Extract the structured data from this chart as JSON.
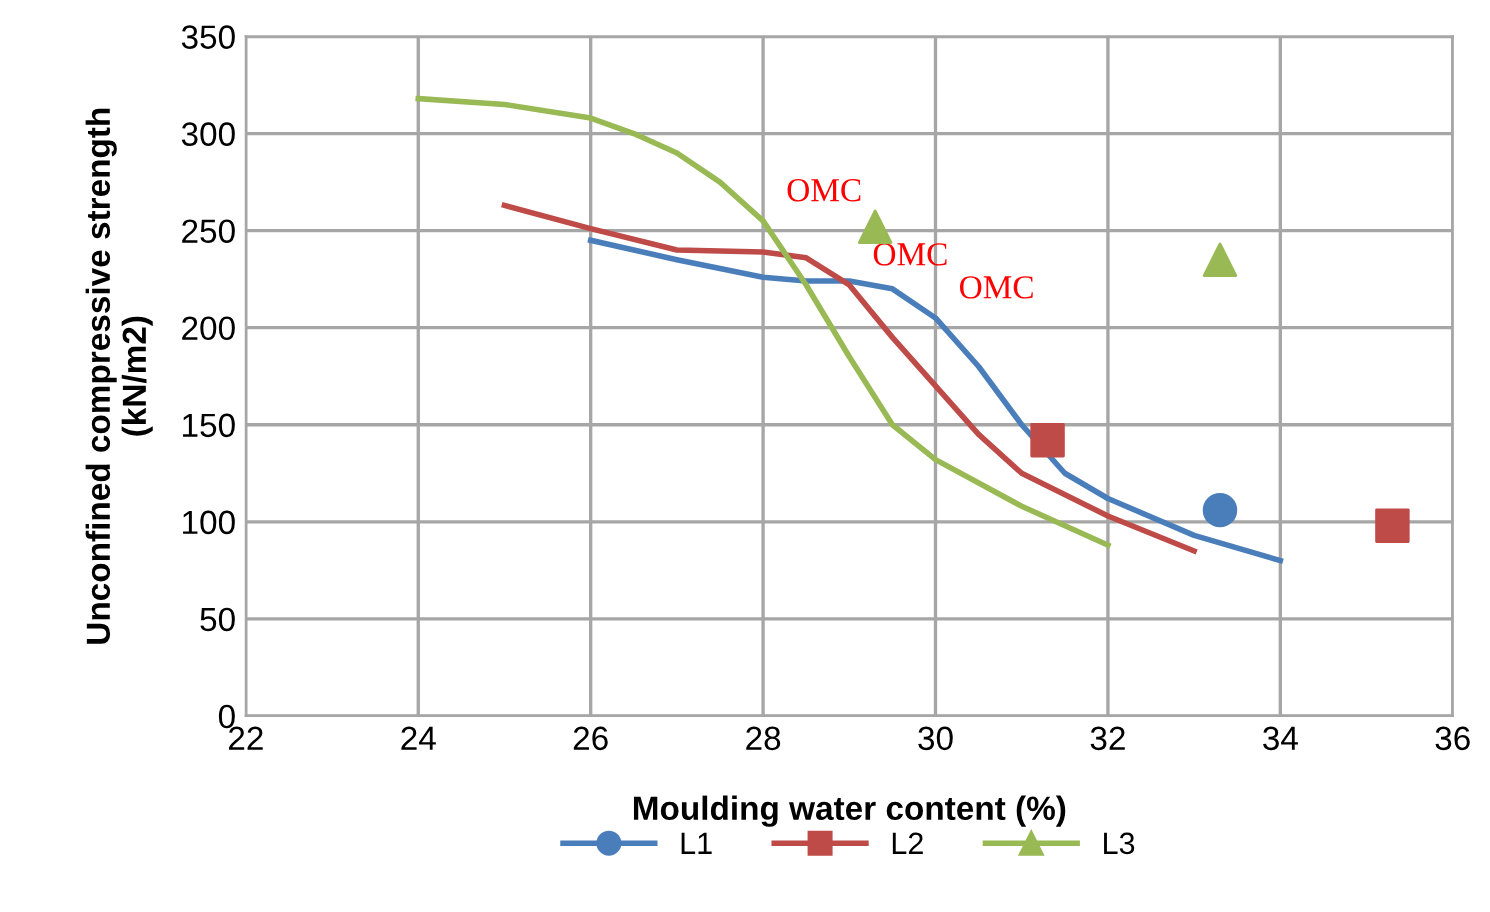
{
  "chart_data": {
    "type": "line",
    "xlabel": "Moulding water content (%)",
    "ylabel": "Unconfined compressive strength\n(kN/m2)",
    "xlim": [
      22,
      36
    ],
    "xticks": [
      22,
      24,
      26,
      28,
      30,
      32,
      34,
      36
    ],
    "ylim": [
      0,
      350
    ],
    "yticks": [
      0,
      50,
      100,
      150,
      200,
      250,
      300,
      350
    ],
    "grid": true,
    "legend": "bottom",
    "series": [
      {
        "color": "#4a7ebb",
        "x": [
          26,
          27,
          28,
          28.5,
          29,
          29.5,
          30,
          30.5,
          31,
          31.5,
          32,
          33,
          34
        ],
        "values": [
          245,
          235,
          226,
          224,
          224,
          220,
          205,
          180,
          150,
          125,
          112,
          93,
          80
        ]
      },
      {
        "color": "#be4b48",
        "x": [
          25,
          26,
          27,
          28,
          28.5,
          29,
          29.5,
          30,
          30.5,
          31,
          32,
          33
        ],
        "values": [
          263,
          251,
          240,
          239,
          236,
          222,
          195,
          170,
          145,
          125,
          103,
          85
        ]
      },
      {
        "color": "#98b954",
        "x": [
          24,
          25,
          26,
          26.5,
          27,
          27.5,
          28,
          28.5,
          29,
          29.5,
          30,
          31,
          32
        ],
        "values": [
          318,
          315,
          308,
          300,
          290,
          275,
          255,
          222,
          185,
          150,
          132,
          108,
          88
        ]
      },
      {
        "name": "L1",
        "type": "scatter",
        "color": "#4a7ebb",
        "marker": "circle",
        "x": [
          33.3
        ],
        "values": [
          106
        ]
      },
      {
        "name": "L2",
        "type": "scatter",
        "color": "#be4b48",
        "marker": "square",
        "x": [
          31.3,
          35.3
        ],
        "values": [
          142,
          98
        ]
      },
      {
        "name": "L3",
        "type": "scatter",
        "color": "#98b954",
        "marker": "triangle",
        "x": [
          29.3,
          33.3
        ],
        "values": [
          252,
          235
        ]
      }
    ],
    "annotations": [
      {
        "text": "OMC",
        "x": 28,
        "y": 255
      },
      {
        "text": "OMC",
        "x": 29,
        "y": 222
      },
      {
        "text": "OMC",
        "x": 30,
        "y": 205
      }
    ]
  }
}
